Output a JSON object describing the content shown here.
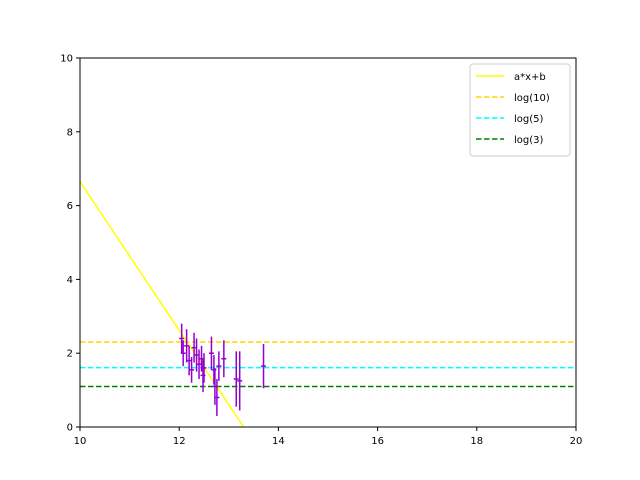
{
  "chart_data": {
    "type": "scatter",
    "title": "",
    "xlabel": "",
    "ylabel": "",
    "xlim": [
      10,
      20
    ],
    "ylim": [
      0,
      10
    ],
    "xticks": [
      "10",
      "12",
      "14",
      "16",
      "18",
      "20"
    ],
    "yticks": [
      "0",
      "2",
      "4",
      "6",
      "8",
      "10"
    ],
    "grid": false,
    "legend_position": "top-right",
    "series": [
      {
        "name": "a*x+b",
        "kind": "line",
        "color": "#ffff00",
        "dash": "solid",
        "x": [
          10.0,
          13.3
        ],
        "y": [
          6.65,
          0.0
        ]
      },
      {
        "name": "log(10)",
        "kind": "hline",
        "color": "#ffd700",
        "dash": "dashed",
        "y": 2.303
      },
      {
        "name": "log(5)",
        "kind": "hline",
        "color": "#00ffff",
        "dash": "dashed",
        "y": 1.609
      },
      {
        "name": "log(3)",
        "kind": "hline",
        "color": "#008000",
        "dash": "dashed",
        "y": 1.099
      }
    ],
    "errorbar_points": {
      "color": "#9400d3",
      "points": [
        {
          "x": 12.05,
          "y": 2.4,
          "yerr": 0.4,
          "xerr": 0.05
        },
        {
          "x": 12.08,
          "y": 2.0,
          "yerr": 0.35,
          "xerr": 0.05
        },
        {
          "x": 12.15,
          "y": 2.2,
          "yerr": 0.45,
          "xerr": 0.05
        },
        {
          "x": 12.2,
          "y": 1.8,
          "yerr": 0.4,
          "xerr": 0.05
        },
        {
          "x": 12.25,
          "y": 1.55,
          "yerr": 0.35,
          "xerr": 0.05
        },
        {
          "x": 12.3,
          "y": 2.15,
          "yerr": 0.4,
          "xerr": 0.05
        },
        {
          "x": 12.35,
          "y": 1.95,
          "yerr": 0.45,
          "xerr": 0.05
        },
        {
          "x": 12.4,
          "y": 1.7,
          "yerr": 0.4,
          "xerr": 0.05
        },
        {
          "x": 12.45,
          "y": 1.85,
          "yerr": 0.35,
          "xerr": 0.05
        },
        {
          "x": 12.48,
          "y": 1.4,
          "yerr": 0.45,
          "xerr": 0.05
        },
        {
          "x": 12.5,
          "y": 1.6,
          "yerr": 0.4,
          "xerr": 0.05
        },
        {
          "x": 12.65,
          "y": 2.0,
          "yerr": 0.45,
          "xerr": 0.05
        },
        {
          "x": 12.7,
          "y": 1.55,
          "yerr": 0.4,
          "xerr": 0.05
        },
        {
          "x": 12.72,
          "y": 1.1,
          "yerr": 0.5,
          "xerr": 0.05
        },
        {
          "x": 12.76,
          "y": 0.8,
          "yerr": 0.5,
          "xerr": 0.05
        },
        {
          "x": 12.8,
          "y": 1.65,
          "yerr": 0.4,
          "xerr": 0.05
        },
        {
          "x": 12.9,
          "y": 1.85,
          "yerr": 0.5,
          "xerr": 0.05
        },
        {
          "x": 13.15,
          "y": 1.3,
          "yerr": 0.75,
          "xerr": 0.05
        },
        {
          "x": 13.22,
          "y": 1.25,
          "yerr": 0.8,
          "xerr": 0.05
        },
        {
          "x": 13.7,
          "y": 1.65,
          "yerr": 0.6,
          "xerr": 0.05
        }
      ]
    }
  }
}
